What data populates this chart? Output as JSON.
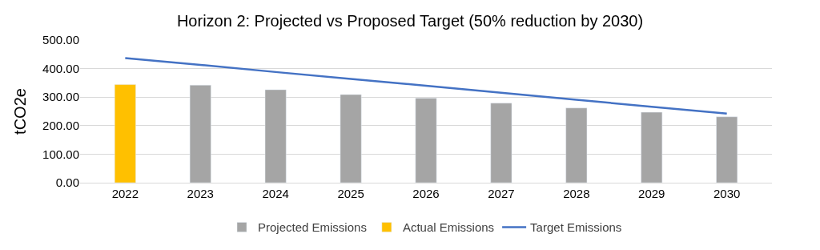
{
  "chart_data": {
    "type": "bar",
    "title": "Horizon 2: Projected vs Proposed Target (50% reduction by 2030)",
    "ylabel": "tCO2e",
    "categories": [
      "2022",
      "2023",
      "2024",
      "2025",
      "2026",
      "2027",
      "2028",
      "2029",
      "2030"
    ],
    "series": [
      {
        "name": "Projected Emissions",
        "color": "#a5a5a5",
        "values": [
          null,
          342,
          326,
          309,
          296,
          279,
          262,
          247,
          231
        ]
      },
      {
        "name": "Actual Emissions",
        "color": "#ffc000",
        "values": [
          344,
          null,
          null,
          null,
          null,
          null,
          null,
          null,
          null
        ]
      },
      {
        "name": "Target Emissions",
        "type": "line",
        "color": "#4472c4",
        "values": [
          437,
          413,
          388,
          364,
          340,
          315,
          291,
          266,
          242
        ]
      }
    ],
    "ylim": [
      0,
      500
    ],
    "yticks": [
      {
        "value": 0,
        "label": "0.00"
      },
      {
        "value": 100,
        "label": "100.00"
      },
      {
        "value": 200,
        "label": "200.00"
      },
      {
        "value": 300,
        "label": "300.00"
      },
      {
        "value": 400,
        "label": "400.00"
      },
      {
        "value": 500,
        "label": "500.00"
      }
    ],
    "grid": "y",
    "legend": "bottom",
    "marker": "none"
  }
}
